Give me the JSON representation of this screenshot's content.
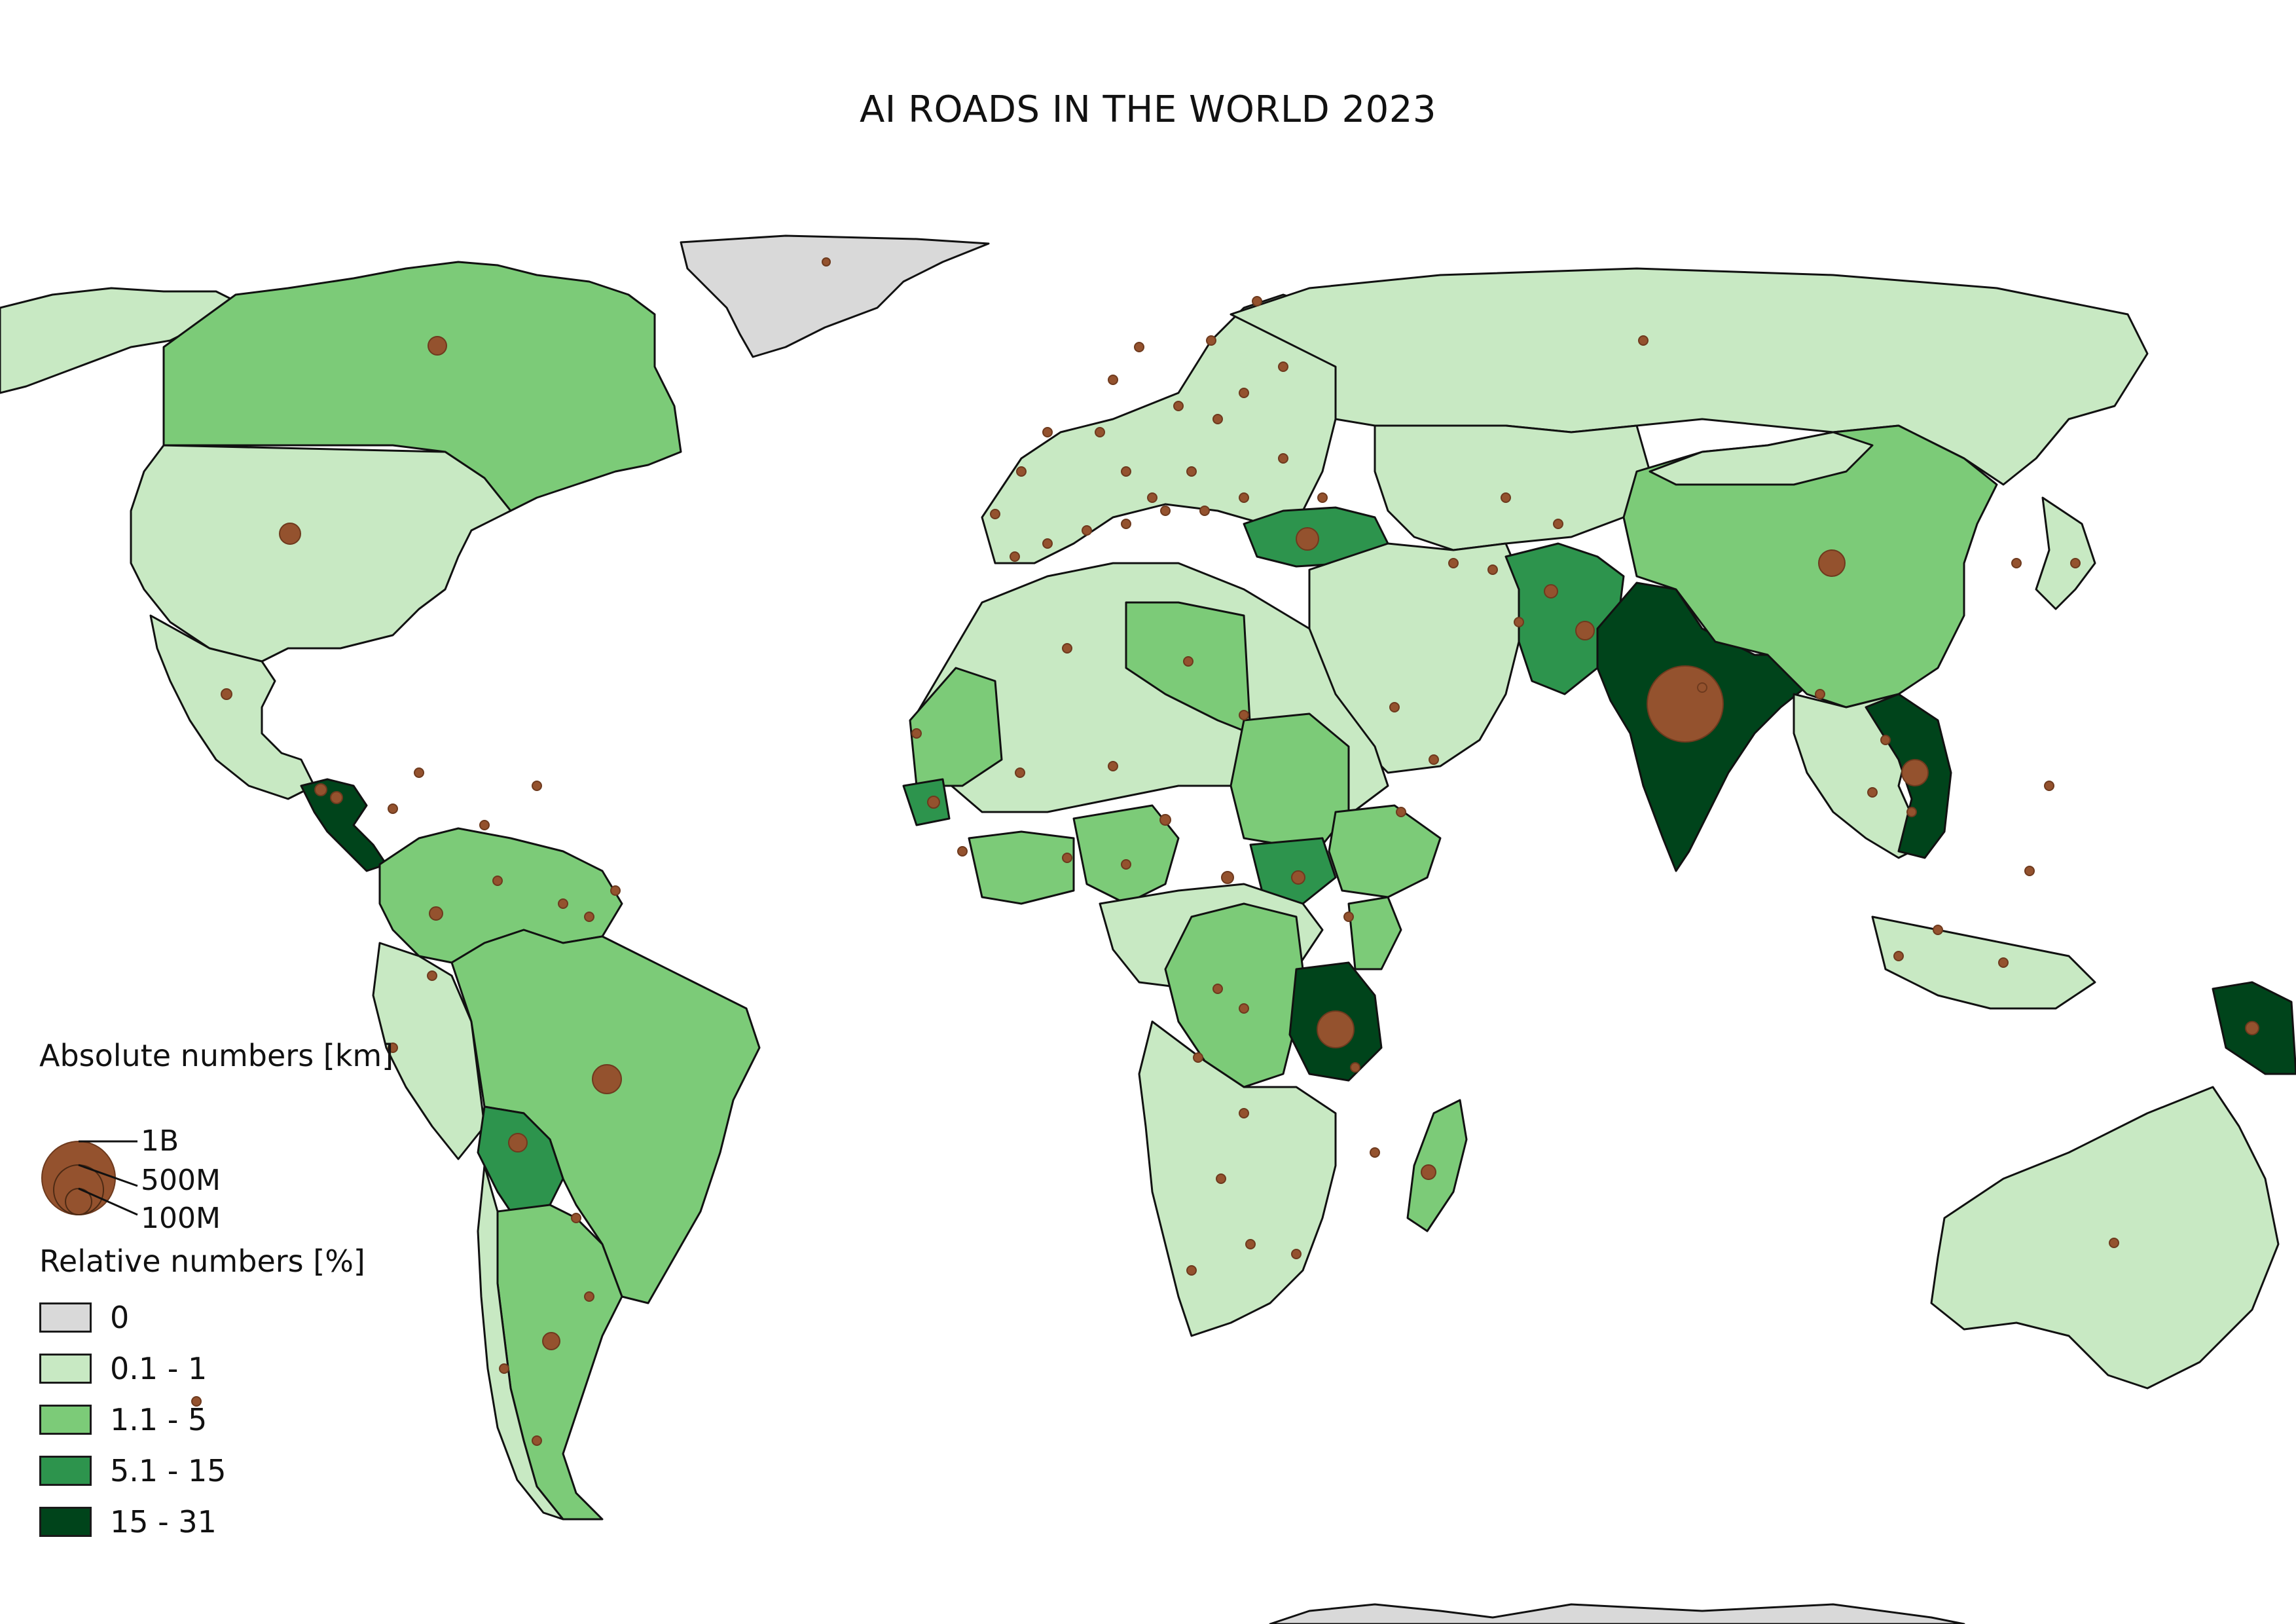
{
  "title": "AI ROADS IN THE WORLD 2023",
  "legend": {
    "absolute_title": "Absolute numbers [km]",
    "size_labels": [
      "1B",
      "500M",
      "100M"
    ],
    "relative_title": "Relative numbers [%]",
    "classes": [
      {
        "label": "0",
        "color": "#d9d9d9"
      },
      {
        "label": "0.1 - 1",
        "color": "#c8e9c3"
      },
      {
        "label": "1.1 - 5",
        "color": "#7ccb78"
      },
      {
        "label": "5.1 - 15",
        "color": "#2d944d"
      },
      {
        "label": "15 - 31",
        "color": "#00441b"
      }
    ]
  },
  "colors": {
    "bubble": "#94522e",
    "bubble_stroke": "#6e3a1e",
    "border": "#111111"
  }
}
